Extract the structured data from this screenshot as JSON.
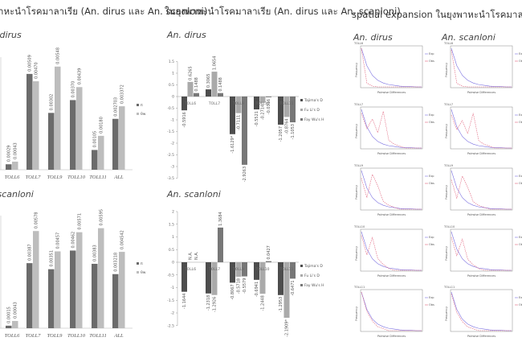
{
  "headers": {
    "left": "าหะนำโรคมาลาเรีย (An. dirus และ An. scanloni)",
    "middle": "ในยุงพาหะนำโรคมาลาเรีย (An. dirus และ An. scanloni)",
    "right": "spatial expansion ในยุงพาหะนำโรคมาลาเรีย"
  },
  "chart_data": [
    {
      "type": "bar",
      "title": "An. dirus",
      "categories": [
        "TOLL6",
        "TOLL7",
        "TOLL9",
        "TOLL10",
        "TOLL11",
        "ALL"
      ],
      "series": [
        {
          "name": "π",
          "values": [
            0.00029,
            0.00509,
            0.00302,
            0.0037,
            0.00105,
            0.002703
          ],
          "labels": [
            "0.00029",
            "0.00509",
            "0.00302",
            "0.00370",
            "0.00105",
            "0.002703"
          ]
        },
        {
          "name": "θw",
          "values": [
            0.00043,
            0.0047,
            0.00548,
            0.00439,
            0.0018,
            0.003372
          ],
          "labels": [
            "0.00043",
            "0.00470",
            "0.00548",
            "0.00439",
            "0.00180",
            "0.003372"
          ]
        }
      ]
    },
    {
      "type": "bar",
      "title": "An. scanloni",
      "categories": [
        "TOLL6",
        "TOLL7",
        "TOLL9",
        "TOLL10",
        "TOLL11",
        "ALL"
      ],
      "series": [
        {
          "name": "π",
          "values": [
            0.00015,
            0.00387,
            0.00351,
            0.00462,
            0.00383,
            0.003218
          ],
          "labels": [
            "0.00015",
            "0.00387",
            "0.00351",
            "0.00462",
            "0.00383",
            "0.003218"
          ]
        },
        {
          "name": "θw",
          "values": [
            0.00043,
            0.00578,
            0.00457,
            0.00571,
            0.00595,
            0.004542
          ],
          "labels": [
            "0.00043",
            "0.00578",
            "0.00457",
            "0.00571",
            "0.00595",
            "0.004542"
          ]
        }
      ]
    },
    {
      "type": "bar",
      "title": "An. dirus",
      "categories": [
        "TOLL6",
        "TOLL7",
        "TOLL9",
        "TOLL10",
        "TOLL11"
      ],
      "ylim": [
        -3.5,
        1.5
      ],
      "yticks": [
        "1.5",
        "1",
        "0.5",
        "0",
        "-0.5",
        "-1",
        "-1.5",
        "-2",
        "-2.5",
        "-3",
        "-3.5"
      ],
      "series": [
        {
          "name": "Tajima's D",
          "values": [
            -0.5916,
            0.3065,
            -1.6129,
            -0.5521,
            -1.2057
          ],
          "labels": [
            "-0.5916",
            "0.3065",
            "-1.6129*",
            "-0.5521",
            "-1.2057"
          ]
        },
        {
          "name": "Fu Li's D",
          "values": [
            0.6265,
            1.0654,
            -0.7111,
            -0.2714,
            -0.8764
          ],
          "labels": [
            "0.6265",
            "1.0654",
            "-0.7111",
            "-0.2714",
            "-0.8764"
          ]
        },
        {
          "name": "Fay Wu's H",
          "values": [
            0.1488,
            0.1488,
            -2.9263,
            -0.0316,
            -1.1053
          ],
          "labels": [
            "0.1488",
            "0.1488",
            "-2.9263",
            "-0.0316",
            "-1.1053"
          ]
        }
      ]
    },
    {
      "type": "bar",
      "title": "An. scanloni",
      "categories": [
        "TOLL6",
        "TOLL7",
        "TOLL9",
        "TOLL10",
        "TOLL11"
      ],
      "ylim": [
        -2.5,
        2
      ],
      "yticks": [
        "2",
        "1.5",
        "1",
        "0.5",
        "0",
        "-0.5",
        "-1",
        "-1.5",
        "-2",
        "-2.5"
      ],
      "series": [
        {
          "name": "Tajima's D",
          "values": [
            -1.1644,
            -1.2318,
            -0.8067,
            -0.6941,
            -1.2953
          ],
          "labels": [
            "-1.1644",
            "-1.2318",
            "-0.8067",
            "-0.6941",
            "-1.2953"
          ]
        },
        {
          "name": "Fu Li's D",
          "values": [
            null,
            -1.2926,
            -0.5718,
            -1.2448,
            -2.1909
          ],
          "labels": [
            "N.A.",
            "-1.2926",
            "-0.5718",
            "-1.2448",
            "-2.1909*"
          ]
        },
        {
          "name": "Fay Wu's H",
          "values": [
            null,
            1.3684,
            -0.5579,
            0.0427,
            -0.6471
          ],
          "labels": [
            "N.A.",
            "1.3684",
            "-0.5579",
            "0.0427",
            "-0.6471"
          ]
        }
      ]
    }
  ],
  "mismatch": {
    "columns": [
      "An. dirus",
      "An. scanloni"
    ],
    "rows": [
      "TOLL6",
      "TOLL7",
      "TOLL9",
      "TOLL10",
      "TOLL11"
    ],
    "xlabel": "Pairwise Differences",
    "ylabel": "Frequency",
    "legend": [
      "Exp",
      "Obs"
    ],
    "exp": [
      1,
      0.55,
      0.3,
      0.17,
      0.1,
      0.06,
      0.04,
      0.02,
      0.01,
      0.01,
      0,
      0
    ],
    "obs": [
      [
        1,
        0.1,
        0.02,
        0,
        0,
        0,
        0,
        0,
        0,
        0,
        0,
        0
      ],
      [
        0.9,
        0.5,
        0.75,
        0.4,
        0.95,
        0.2,
        0.1,
        0.05,
        0,
        0,
        0,
        0
      ],
      [
        0.8,
        0.3,
        0.9,
        0.6,
        0.2,
        0.1,
        0.05,
        0,
        0,
        0,
        0,
        0
      ],
      [
        0.9,
        0.4,
        0.85,
        0.3,
        0.15,
        0.05,
        0,
        0,
        0,
        0,
        0,
        0
      ],
      [
        1,
        0.5,
        0.25,
        0.1,
        0.05,
        0,
        0,
        0,
        0,
        0,
        0,
        0
      ]
    ]
  }
}
